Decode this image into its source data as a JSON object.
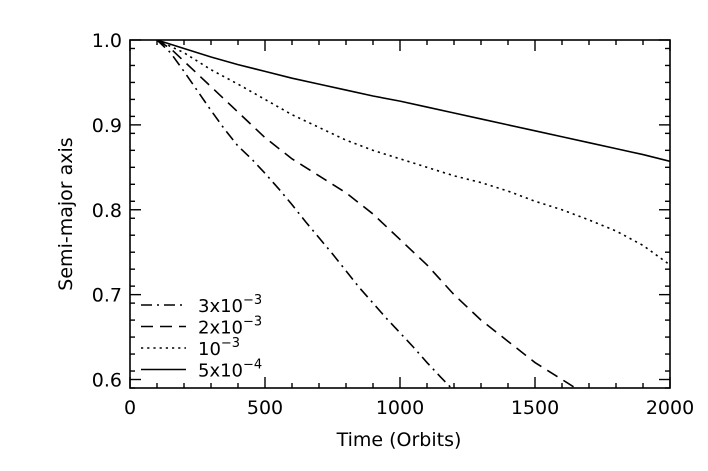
{
  "chart_data": {
    "type": "line",
    "xlabel": "Time (Orbits)",
    "ylabel": "Semi-major axis",
    "xlim": [
      0,
      2000
    ],
    "ylim": [
      0.59,
      1.0
    ],
    "xticks": [
      0,
      500,
      1000,
      1500,
      2000
    ],
    "xtick_labels": [
      "0",
      "500",
      "1000",
      "1500",
      "2000"
    ],
    "yticks": [
      0.6,
      0.7,
      0.8,
      0.9,
      1.0
    ],
    "ytick_labels": [
      "0.6",
      "0.7",
      "0.8",
      "0.9",
      "1.0"
    ],
    "grid": false,
    "legend_position": "bottom-left",
    "line_color": "#000000",
    "series": [
      {
        "legend_base": "3x10",
        "legend_exp": "−3",
        "dash": "dash-dot",
        "x": [
          100,
          150,
          200,
          250,
          300,
          350,
          400,
          450,
          500,
          550,
          600,
          650,
          700,
          750,
          800,
          850,
          900,
          950,
          1000,
          1050,
          1100,
          1150,
          1190
        ],
        "y": [
          1.0,
          0.985,
          0.963,
          0.94,
          0.917,
          0.895,
          0.875,
          0.86,
          0.843,
          0.825,
          0.806,
          0.786,
          0.767,
          0.748,
          0.728,
          0.708,
          0.69,
          0.672,
          0.655,
          0.638,
          0.62,
          0.603,
          0.59
        ]
      },
      {
        "legend_base": "2x10",
        "legend_exp": "−3",
        "dash": "dashed",
        "x": [
          100,
          150,
          200,
          300,
          400,
          500,
          600,
          700,
          800,
          900,
          1000,
          1100,
          1200,
          1300,
          1400,
          1500,
          1600,
          1650
        ],
        "y": [
          1.0,
          0.99,
          0.975,
          0.945,
          0.915,
          0.885,
          0.86,
          0.84,
          0.82,
          0.795,
          0.765,
          0.735,
          0.7,
          0.67,
          0.645,
          0.62,
          0.6,
          0.59
        ]
      },
      {
        "legend_base": "10",
        "legend_exp": "−3",
        "dash": "dotted",
        "x": [
          100,
          200,
          300,
          400,
          500,
          600,
          700,
          800,
          900,
          1000,
          1100,
          1200,
          1300,
          1400,
          1500,
          1600,
          1700,
          1800,
          1900,
          2000
        ],
        "y": [
          1.0,
          0.985,
          0.965,
          0.948,
          0.93,
          0.912,
          0.897,
          0.882,
          0.87,
          0.86,
          0.85,
          0.84,
          0.832,
          0.822,
          0.81,
          0.8,
          0.788,
          0.775,
          0.758,
          0.735
        ]
      },
      {
        "legend_base": "5x10",
        "legend_exp": "−4",
        "dash": "solid",
        "x": [
          100,
          200,
          300,
          400,
          500,
          600,
          700,
          800,
          900,
          1000,
          1100,
          1200,
          1300,
          1400,
          1500,
          1600,
          1700,
          1800,
          1900,
          2000
        ],
        "y": [
          1.0,
          0.99,
          0.98,
          0.971,
          0.963,
          0.955,
          0.948,
          0.941,
          0.934,
          0.928,
          0.921,
          0.914,
          0.907,
          0.9,
          0.893,
          0.886,
          0.879,
          0.872,
          0.865,
          0.857
        ]
      }
    ]
  }
}
